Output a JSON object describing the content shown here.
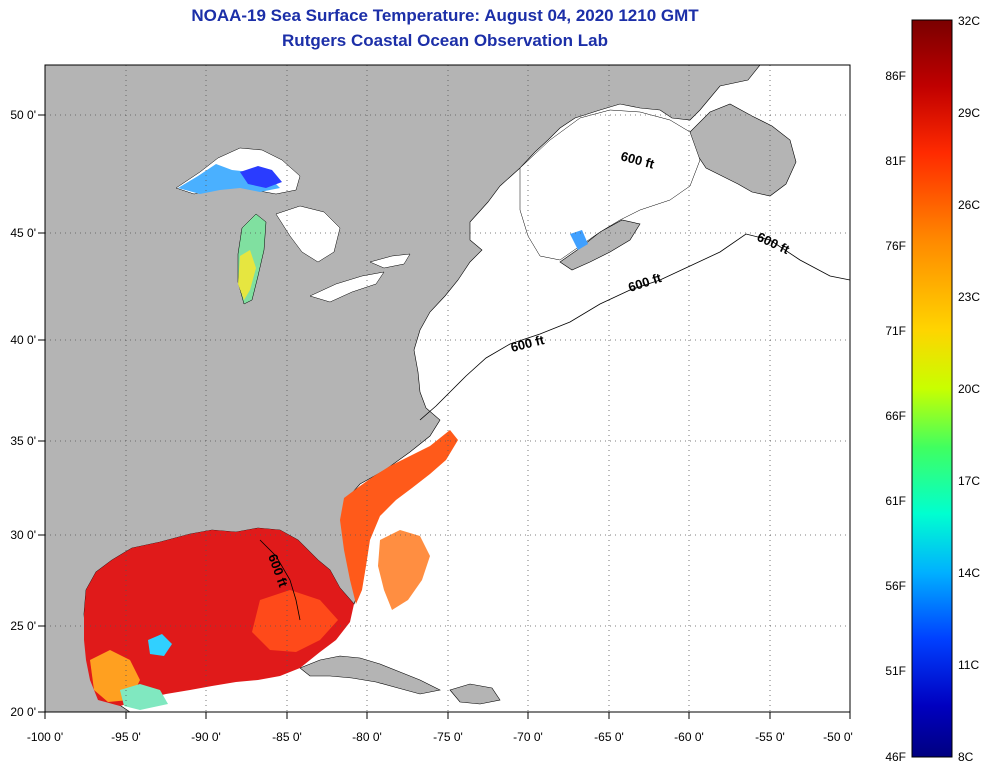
{
  "title": {
    "line1": "NOAA-19 Sea Surface Temperature:  August 04, 2020 1210 GMT",
    "line2": "Rutgers Coastal Ocean Observation Lab"
  },
  "map": {
    "lon_range": [
      -100,
      -50
    ],
    "lat_range": [
      20,
      52
    ],
    "land_color": "#b4b4b4",
    "ocean_no_data_color": "#ffffff",
    "grid_style": "dotted",
    "x_ticks": [
      "-100 0'",
      "-95 0'",
      "-90 0'",
      "-85 0'",
      "-80 0'",
      "-75 0'",
      "-70 0'",
      "-65 0'",
      "-60 0'",
      "-55 0'",
      "-50 0'"
    ],
    "y_ticks": [
      "50 0'",
      "45 0'",
      "40 0'",
      "35 0'",
      "30 0'",
      "25 0'",
      "20 0'"
    ],
    "contour_labels": [
      "600 ft",
      "600 ft",
      "600 ft",
      "600 ft",
      "600 ft"
    ]
  },
  "colorbar": {
    "celsius_labels": [
      "32C",
      "29C",
      "26C",
      "23C",
      "20C",
      "17C",
      "14C",
      "11C",
      "8C"
    ],
    "fahrenheit_labels": [
      "86F",
      "81F",
      "76F",
      "71F",
      "66F",
      "61F",
      "56F",
      "51F",
      "46F"
    ],
    "colors": [
      "#7a0000",
      "#c00000",
      "#ff2a00",
      "#ff8a00",
      "#ffd400",
      "#c8ff00",
      "#40ff60",
      "#00ffd0",
      "#00b0ff",
      "#0040ff",
      "#0000c0",
      "#000080"
    ]
  }
}
